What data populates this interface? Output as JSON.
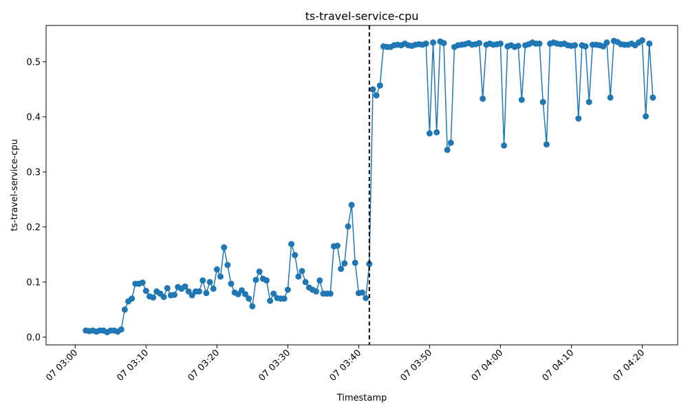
{
  "chart_data": {
    "type": "line",
    "title": "ts-travel-service-cpu",
    "xlabel": "Timestamp",
    "ylabel": "ts-travel-service-cpu",
    "x_unit": "minutes after 07 03:00",
    "xlim": [
      -4.1,
      85.0
    ],
    "ylim": [
      -0.014,
      0.566
    ],
    "x_ticks": [
      {
        "value": 0,
        "label": "07 03:00"
      },
      {
        "value": 10,
        "label": "07 03:10"
      },
      {
        "value": 20,
        "label": "07 03:20"
      },
      {
        "value": 30,
        "label": "07 03:30"
      },
      {
        "value": 40,
        "label": "07 03:40"
      },
      {
        "value": 50,
        "label": "07 03:50"
      },
      {
        "value": 60,
        "label": "07 04:00"
      },
      {
        "value": 70,
        "label": "07 04:10"
      },
      {
        "value": 80,
        "label": "07 04:20"
      }
    ],
    "y_ticks": [
      {
        "value": 0.0,
        "label": "0.0"
      },
      {
        "value": 0.1,
        "label": "0.1"
      },
      {
        "value": 0.2,
        "label": "0.2"
      },
      {
        "value": 0.3,
        "label": "0.3"
      },
      {
        "value": 0.4,
        "label": "0.4"
      },
      {
        "value": 0.5,
        "label": "0.5"
      }
    ],
    "vertical_line": {
      "x": 41.5,
      "style": "dashed"
    },
    "series": [
      {
        "name": "ts-travel-service-cpu",
        "color": "#1f77b4",
        "x": [
          1.5,
          2.0,
          2.5,
          3.0,
          3.5,
          4.0,
          4.5,
          5.0,
          5.5,
          6.0,
          6.5,
          7.0,
          7.5,
          8.0,
          8.5,
          9.0,
          9.5,
          10.0,
          10.5,
          11.0,
          11.5,
          12.0,
          12.5,
          13.0,
          13.5,
          14.0,
          14.5,
          15.0,
          15.5,
          16.0,
          16.5,
          17.0,
          17.5,
          18.0,
          18.5,
          19.0,
          19.5,
          20.0,
          20.5,
          21.0,
          21.5,
          22.0,
          22.5,
          23.0,
          23.5,
          24.0,
          24.5,
          25.0,
          25.5,
          26.0,
          26.5,
          27.0,
          27.5,
          28.0,
          28.5,
          29.0,
          29.5,
          30.0,
          30.5,
          31.0,
          31.5,
          32.0,
          32.5,
          33.0,
          33.5,
          34.0,
          34.5,
          35.0,
          35.5,
          36.0,
          36.5,
          37.0,
          37.5,
          38.0,
          38.5,
          39.0,
          39.5,
          40.0,
          40.5,
          41.0,
          41.5,
          42.0,
          42.5,
          43.0,
          43.5,
          44.0,
          44.5,
          45.0,
          45.5,
          46.0,
          46.5,
          47.0,
          47.5,
          48.0,
          48.5,
          49.0,
          49.5,
          50.0,
          50.5,
          51.0,
          51.5,
          52.0,
          52.5,
          53.0,
          53.5,
          54.0,
          54.5,
          55.0,
          55.5,
          56.0,
          56.5,
          57.0,
          57.5,
          58.0,
          58.5,
          59.0,
          59.5,
          60.0,
          60.5,
          61.0,
          61.5,
          62.0,
          62.5,
          63.0,
          63.5,
          64.0,
          64.5,
          65.0,
          65.5,
          66.0,
          66.5,
          67.0,
          67.5,
          68.0,
          68.5,
          69.0,
          69.5,
          70.0,
          70.5,
          71.0,
          71.5,
          72.0,
          72.5,
          73.0,
          73.5,
          74.0,
          74.5,
          75.0,
          75.5,
          76.0,
          76.5,
          77.0,
          77.5,
          78.0,
          78.5,
          79.0,
          79.5,
          80.0,
          80.5,
          81.0,
          81.5
        ],
        "y": [
          0.012,
          0.011,
          0.012,
          0.01,
          0.012,
          0.012,
          0.009,
          0.012,
          0.012,
          0.01,
          0.014,
          0.05,
          0.065,
          0.07,
          0.097,
          0.097,
          0.099,
          0.084,
          0.074,
          0.072,
          0.083,
          0.079,
          0.073,
          0.089,
          0.076,
          0.077,
          0.091,
          0.088,
          0.092,
          0.083,
          0.076,
          0.083,
          0.083,
          0.103,
          0.08,
          0.1,
          0.088,
          0.123,
          0.11,
          0.163,
          0.131,
          0.097,
          0.081,
          0.078,
          0.085,
          0.078,
          0.07,
          0.056,
          0.104,
          0.119,
          0.106,
          0.103,
          0.066,
          0.079,
          0.071,
          0.07,
          0.07,
          0.086,
          0.169,
          0.149,
          0.11,
          0.12,
          0.1,
          0.09,
          0.086,
          0.083,
          0.103,
          0.079,
          0.079,
          0.079,
          0.165,
          0.166,
          0.124,
          0.134,
          0.201,
          0.24,
          0.135,
          0.08,
          0.081,
          0.071,
          0.133,
          0.45,
          0.439,
          0.457,
          0.528,
          0.527,
          0.527,
          0.53,
          0.531,
          0.53,
          0.533,
          0.53,
          0.529,
          0.531,
          0.532,
          0.531,
          0.533,
          0.37,
          0.535,
          0.372,
          0.537,
          0.534,
          0.34,
          0.353,
          0.527,
          0.53,
          0.531,
          0.532,
          0.534,
          0.531,
          0.532,
          0.534,
          0.433,
          0.531,
          0.533,
          0.531,
          0.532,
          0.533,
          0.348,
          0.528,
          0.53,
          0.527,
          0.529,
          0.431,
          0.53,
          0.532,
          0.535,
          0.533,
          0.533,
          0.427,
          0.35,
          0.533,
          0.535,
          0.533,
          0.532,
          0.533,
          0.53,
          0.529,
          0.53,
          0.397,
          0.53,
          0.528,
          0.427,
          0.531,
          0.531,
          0.53,
          0.528,
          0.535,
          0.435,
          0.538,
          0.536,
          0.532,
          0.531,
          0.531,
          0.533,
          0.53,
          0.535,
          0.539,
          0.401,
          0.533,
          0.435
        ]
      }
    ]
  }
}
